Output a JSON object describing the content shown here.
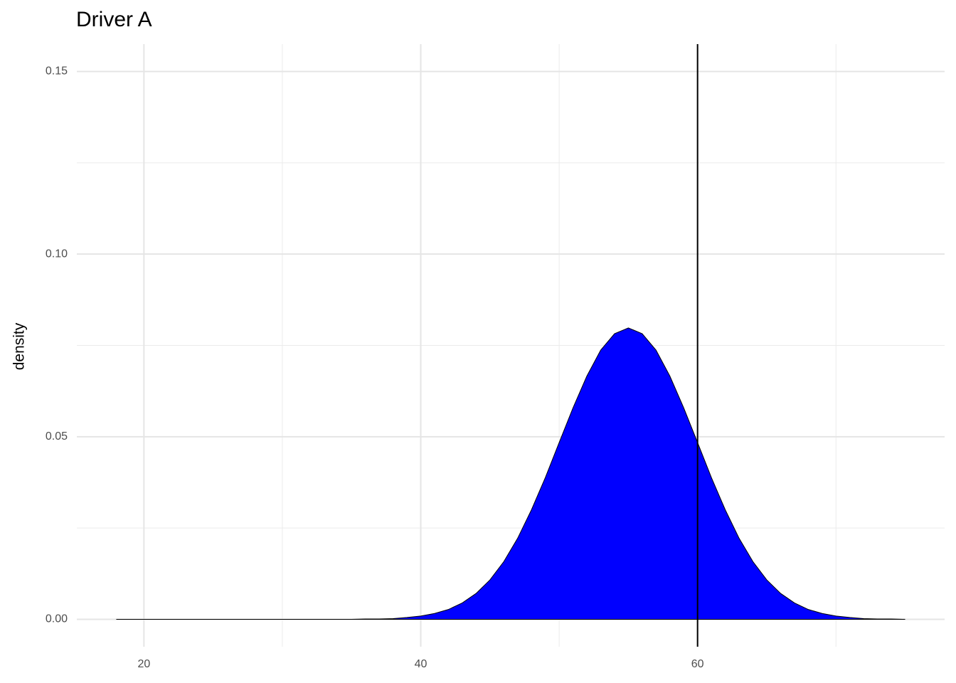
{
  "chart_data": {
    "type": "area",
    "title": "Driver A",
    "y_label": "density",
    "x": [
      18,
      19,
      20,
      21,
      22,
      23,
      24,
      25,
      26,
      27,
      28,
      29,
      30,
      31,
      32,
      33,
      34,
      35,
      36,
      37,
      38,
      39,
      40,
      41,
      42,
      43,
      44,
      45,
      46,
      47,
      48,
      49,
      50,
      51,
      52,
      53,
      54,
      55,
      56,
      57,
      58,
      59,
      60,
      61,
      62,
      63,
      64,
      65,
      66,
      67,
      68,
      69,
      70,
      71,
      72,
      73,
      74,
      75
    ],
    "values": [
      0,
      0,
      0,
      0,
      0,
      0,
      0,
      0,
      0,
      0,
      0,
      0,
      0,
      0,
      0,
      0,
      0,
      0,
      0.0001,
      0.0001,
      0.0002,
      0.0005,
      0.0009,
      0.0016,
      0.0027,
      0.0045,
      0.0071,
      0.0108,
      0.0158,
      0.0222,
      0.03,
      0.0388,
      0.0484,
      0.0579,
      0.0666,
      0.0737,
      0.0782,
      0.0798,
      0.0782,
      0.0737,
      0.0666,
      0.0579,
      0.0484,
      0.0388,
      0.03,
      0.0222,
      0.0158,
      0.0108,
      0.0071,
      0.0045,
      0.0027,
      0.0016,
      0.0009,
      0.0005,
      0.0002,
      0.0001,
      0.0001,
      0
    ],
    "color": "#0000ff",
    "outline_color": "#000000",
    "vline": 60,
    "xlim": [
      15.15,
      77.85
    ],
    "xticks": [
      20,
      40,
      60
    ],
    "x_minor_ticks": [
      30,
      50,
      70
    ],
    "ylim": [
      -0.0075,
      0.1575
    ],
    "yticks": [
      {
        "value": 0,
        "label": "0.00"
      },
      {
        "value": 0.05,
        "label": "0.05"
      },
      {
        "value": 0.1,
        "label": "0.10"
      },
      {
        "value": 0.15,
        "label": "0.15"
      }
    ],
    "y_minor_ticks": [
      0.025,
      0.075,
      0.125
    ],
    "grid": true
  }
}
